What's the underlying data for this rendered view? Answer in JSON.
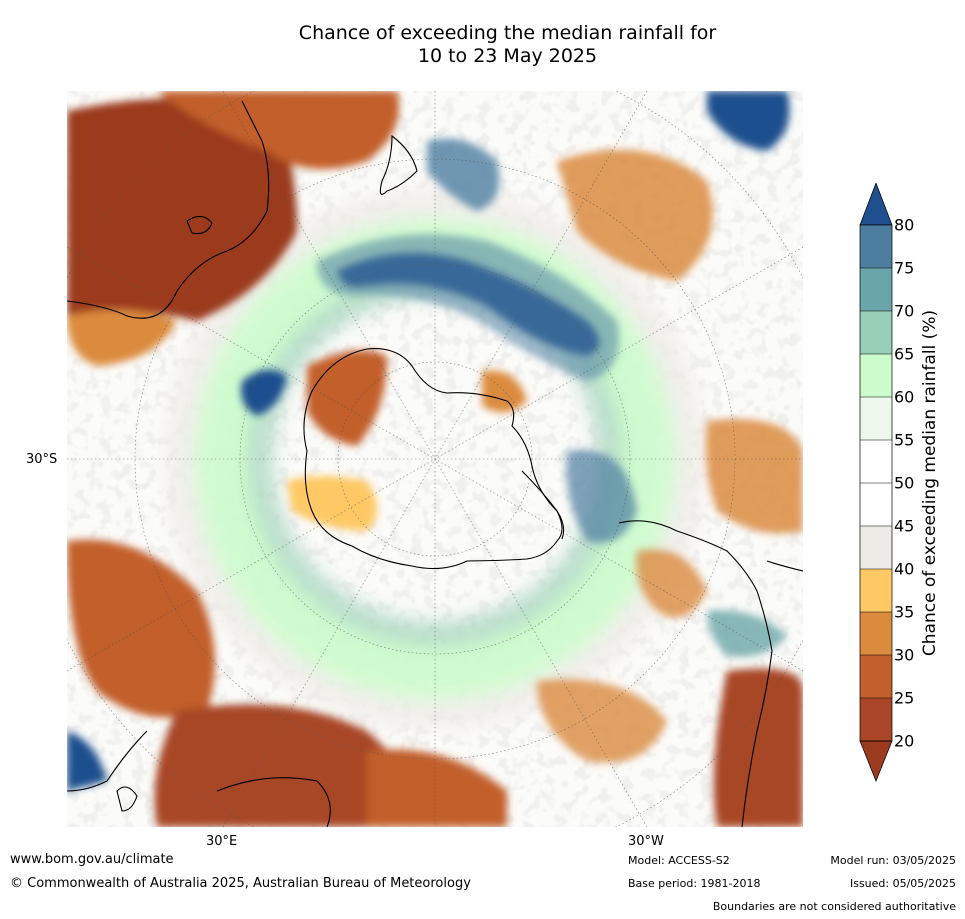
{
  "title": {
    "line1": "Chance of exceeding the median rainfall for",
    "line2": "10 to 23 May 2025"
  },
  "map": {
    "projection": "south-polar stereographic",
    "latitude_label": "30°S",
    "longitude_labels": [
      "30°E",
      "30°W"
    ],
    "landmasses": [
      "Australia",
      "New Zealand",
      "Antarctica",
      "South America",
      "Africa"
    ]
  },
  "colorbar": {
    "title": "Chance of exceeding median rainfall (%)",
    "ticks": [
      "20",
      "25",
      "30",
      "35",
      "40",
      "45",
      "50",
      "55",
      "60",
      "65",
      "70",
      "75",
      "80"
    ],
    "colors": [
      "#9b3a1e",
      "#a84627",
      "#c25f2c",
      "#db8b3e",
      "#fec965",
      "#edebe6",
      "#ffffff",
      "#ffffff",
      "#edf7ec",
      "#ccfccc",
      "#98cfb7",
      "#6aa6a9",
      "#4c7ea0",
      "#1f4f8e"
    ]
  },
  "footer": {
    "website": "www.bom.gov.au/climate",
    "copyright": "© Commonwealth of Australia 2025, Australian Bureau of Meteorology",
    "model": "Model: ACCESS-S2",
    "base_period": "Base period: 1981-2018",
    "model_run": "Model run: 03/05/2025",
    "issued": "Issued: 05/05/2025",
    "disclaimer": "Boundaries are not considered authoritative"
  }
}
